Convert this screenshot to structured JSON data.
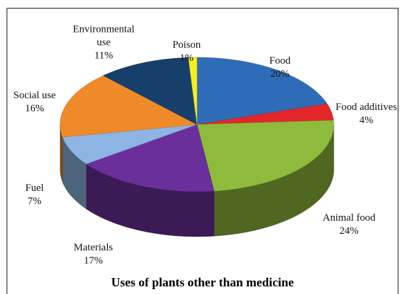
{
  "chart_data": {
    "type": "pie3d",
    "title": "Uses of plants other than medicine",
    "categories": [
      "Food",
      "Food additives",
      "Animal food",
      "Materials",
      "Fuel",
      "Social use",
      "Environmental use",
      "Poison"
    ],
    "values": [
      20,
      4,
      24,
      17,
      7,
      16,
      11,
      1
    ],
    "value_labels": [
      "20%",
      "4%",
      "24%",
      "17%",
      "7%",
      "16%",
      "11%",
      "1%"
    ],
    "colors": [
      "#2f6cb7",
      "#e3262a",
      "#8fbb3c",
      "#6b2f9b",
      "#8db4e2",
      "#ef8a2b",
      "#173f6c",
      "#f6f01f"
    ]
  }
}
